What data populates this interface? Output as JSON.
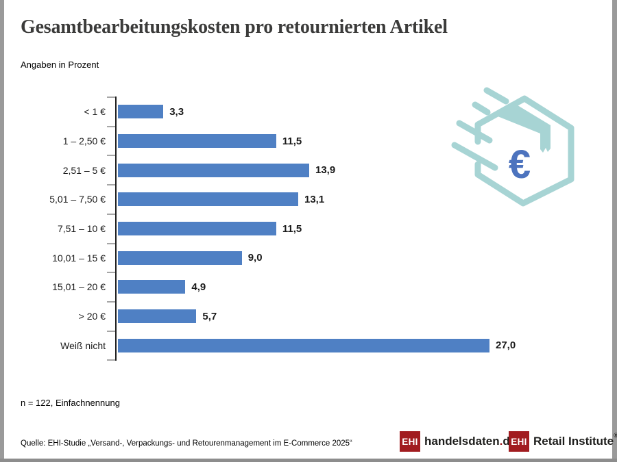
{
  "header": {
    "title": "Gesamtbearbeitungskosten pro retournierten Artikel",
    "subtitle": "Angaben in Prozent"
  },
  "chart_data": {
    "type": "bar",
    "orientation": "horizontal",
    "title": "Gesamtbearbeitungskosten pro retournierten Artikel",
    "unit": "Prozent",
    "categories": [
      "< 1 €",
      "1 – 2,50 €",
      "2,51 – 5 €",
      "5,01 – 7,50 €",
      "7,51 – 10 €",
      "10,01 – 15 €",
      "15,01 – 20 €",
      "> 20 €",
      "Weiß nicht"
    ],
    "values": [
      3.3,
      11.5,
      13.9,
      13.1,
      11.5,
      9.0,
      4.9,
      5.7,
      27.0
    ],
    "value_labels": [
      "3,3",
      "11,5",
      "13,9",
      "13,1",
      "11,5",
      "9,0",
      "4,9",
      "5,7",
      "27,0"
    ],
    "xlim": [
      0,
      27
    ],
    "grid": false,
    "legend": false,
    "bar_color": "#4f80c4"
  },
  "icon": {
    "name": "flying-parcel-euro-icon",
    "euro_symbol": "€",
    "teal": "#a7d4d4",
    "euro_blue": "#4c73be"
  },
  "notes": {
    "footnote": "n = 122, Einfachnennung",
    "source": "Quelle: EHI-Studie „Versand-, Verpackungs- und Retourenmanagement im E-Commerce 2025“"
  },
  "logos": {
    "handelsdaten": {
      "box": "EHI",
      "name": "handelsdaten",
      "dot": ".",
      "tld": "de"
    },
    "retail": {
      "box": "EHI",
      "name": "Retail Institute",
      "reg": "®"
    }
  },
  "colors": {
    "frame": "#9a9a9a",
    "axis": "#1f1f1f",
    "tick": "#a6a6a6",
    "logo_red": "#a11c20"
  }
}
